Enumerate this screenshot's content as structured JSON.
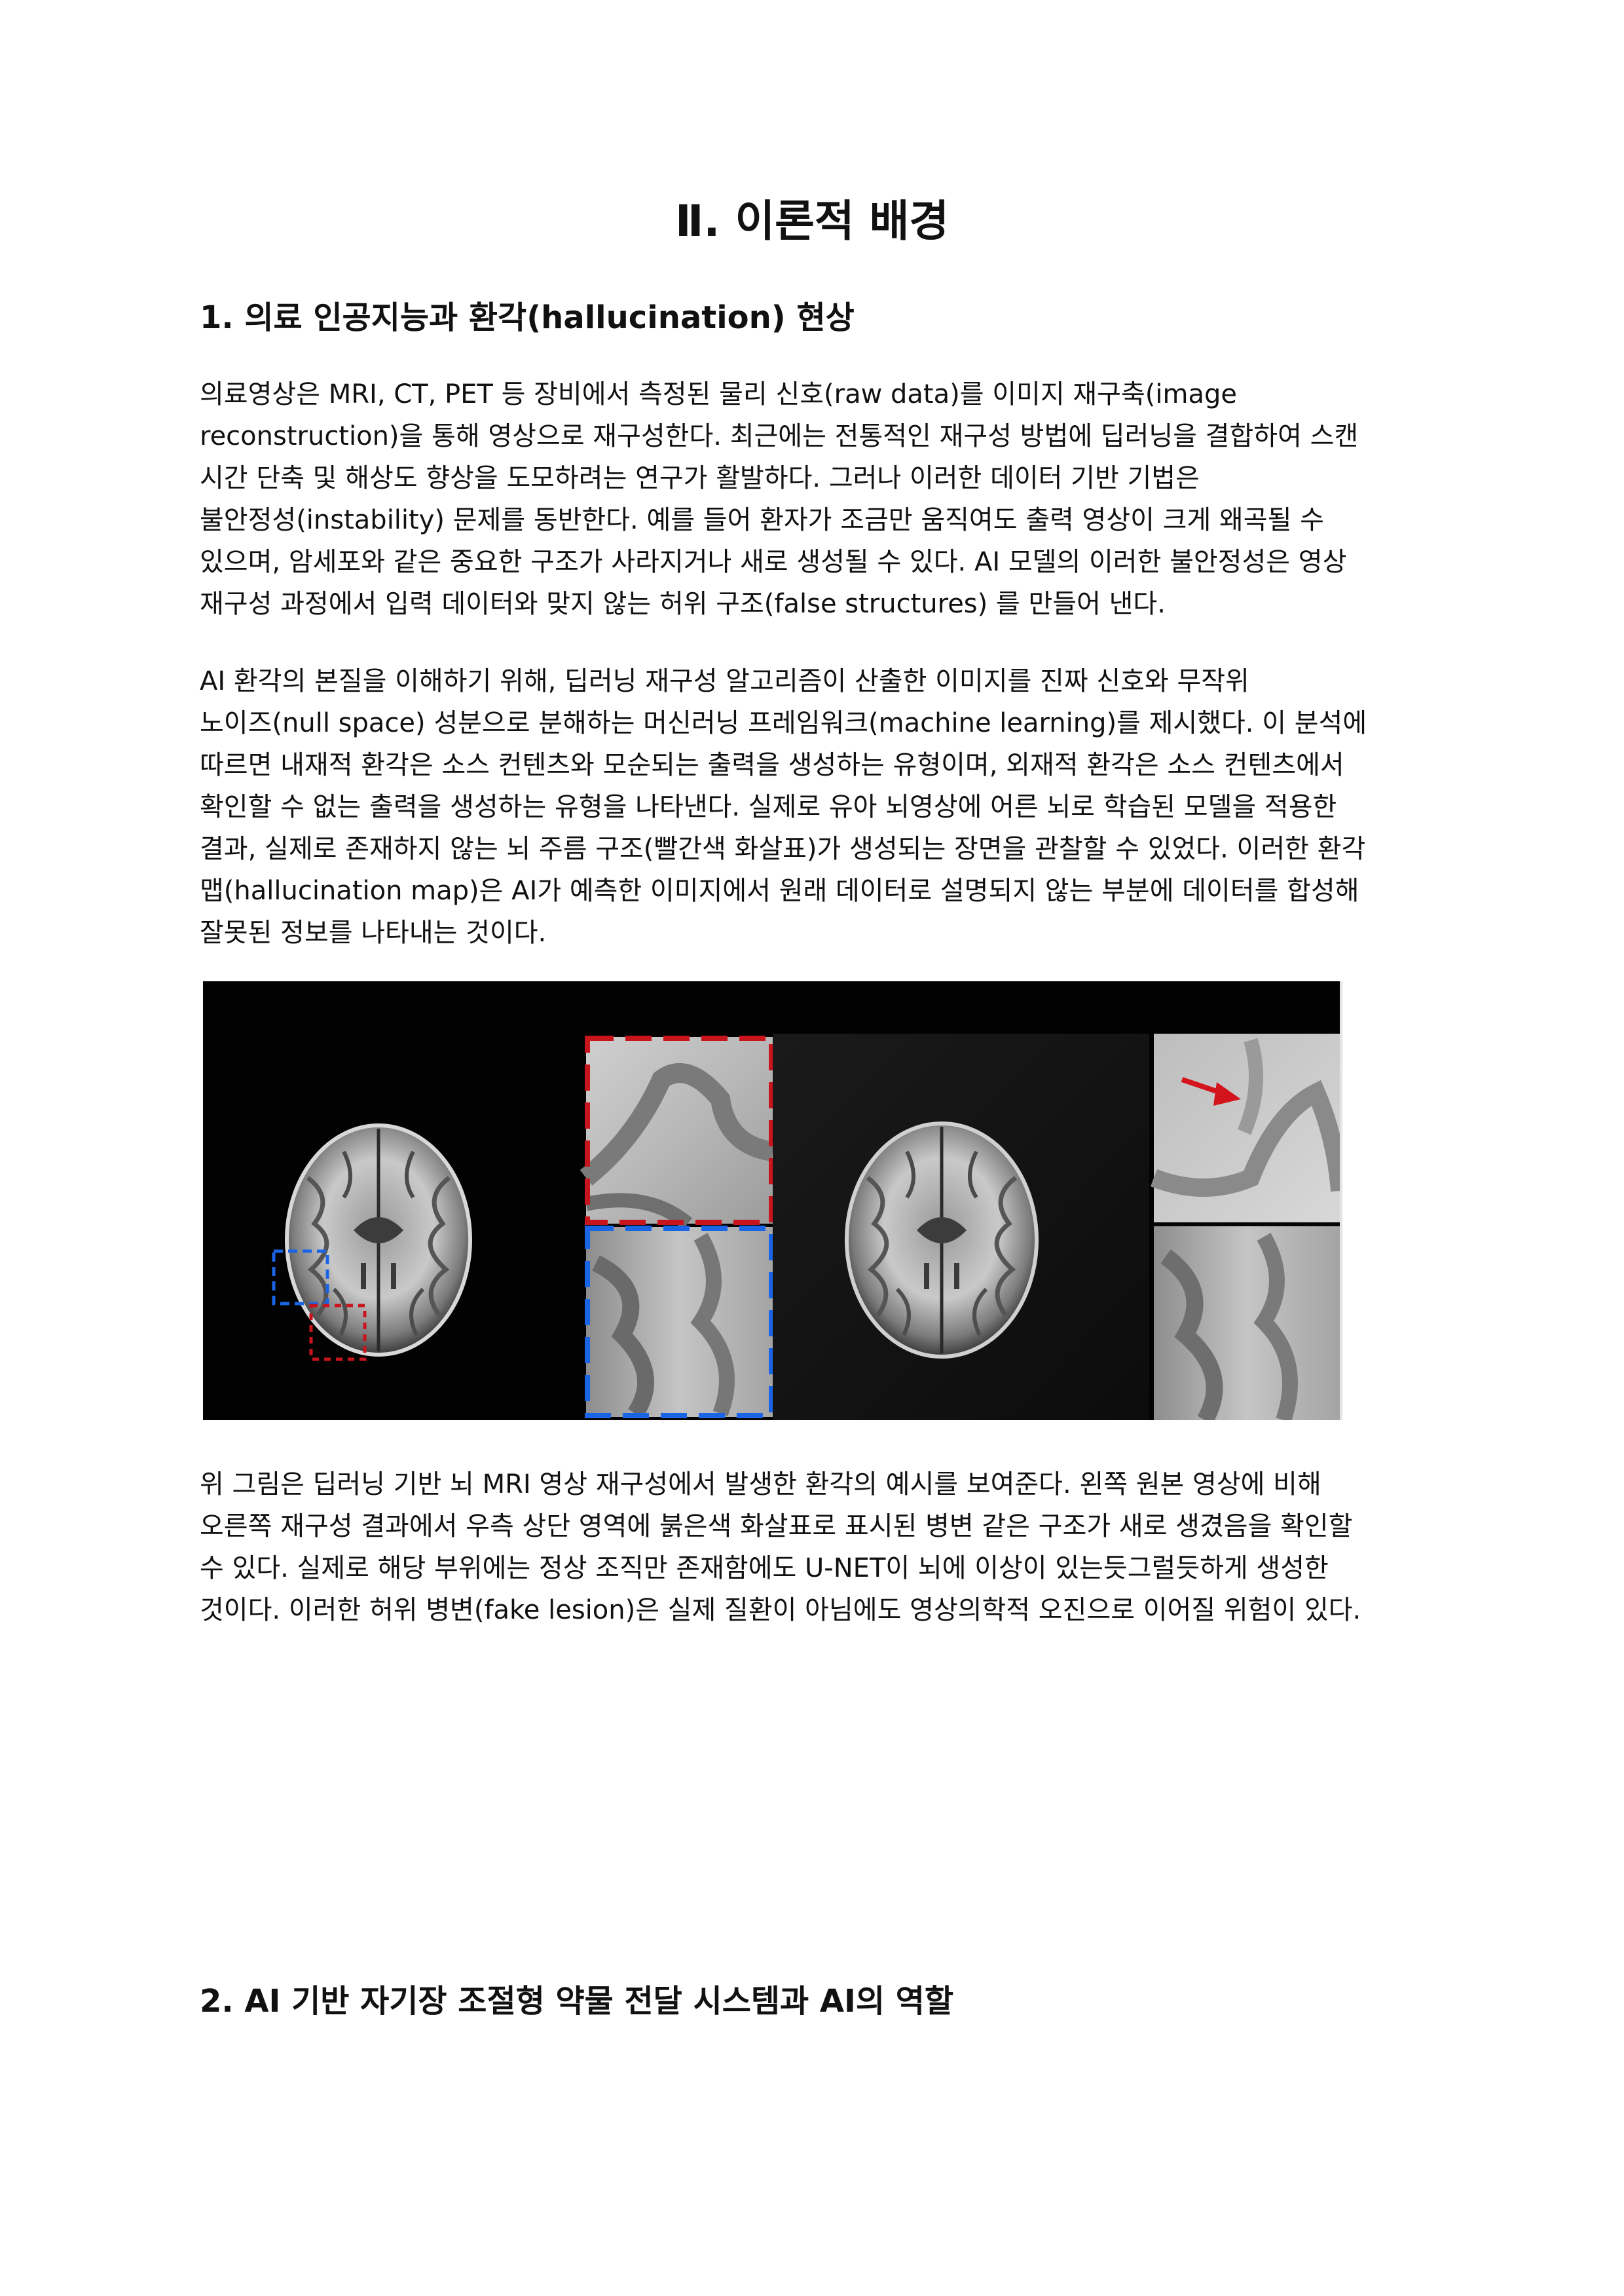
{
  "title": "Ⅱ. 이론적 배경",
  "section1": {
    "heading": "1. 의료 인공지능과 환각(hallucination) 현상",
    "paragraph1": [
      "의료영상은 MRI, CT, PET 등 장비에서 측정된 물리 신호(raw data)를 이미지 재구축(image",
      "reconstruction)을 통해 영상으로 재구성한다. 최근에는 전통적인 재구성 방법에 딥러닝을 결합하여 스캔",
      "시간 단축 및 해상도 향상을 도모하려는 연구가 활발하다. 그러나 이러한 데이터 기반 기법은",
      "불안정성(instability) 문제를 동반한다. 예를 들어 환자가 조금만 움직여도 출력 영상이 크게 왜곡될 수",
      "있으며, 암세포와 같은 중요한 구조가 사라지거나 새로 생성될 수 있다. AI 모델의 이러한 불안정성은 영상",
      "재구성 과정에서 입력 데이터와 맞지 않는 허위 구조(false structures) 를 만들어 낸다."
    ],
    "paragraph2": [
      "AI 환각의 본질을 이해하기 위해, 딥러닝 재구성 알고리즘이 산출한 이미지를 진짜 신호와 무작위",
      "노이즈(null space) 성분으로 분해하는 머신러닝 프레임워크(machine learning)를 제시했다. 이 분석에",
      "따르면 내재적 환각은 소스 컨텐츠와 모순되는 출력을 생성하는 유형이며, 외재적 환각은 소스 컨텐츠에서",
      "확인할 수 없는 출력을 생성하는 유형을 나타낸다. 실제로 유아 뇌영상에 어른 뇌로 학습된 모델을 적용한",
      "결과, 실제로 존재하지 않는 뇌 주름 구조(빨간색 화살표)가 생성되는 장면을 관찰할 수 있었다. 이러한 환각",
      "맵(hallucination map)은 AI가 예측한 이미지에서 원래 데이터로 설명되지 않는 부분에 데이터를 합성해",
      "잘못된 정보를 나타내는 것이다."
    ],
    "paragraph3": [
      "위 그림은 딥러닝 기반 뇌 MRI 영상 재구성에서 발생한 환각의 예시를 보여준다. 왼쪽 원본 영상에 비해",
      "오른쪽 재구성 결과에서 우측 상단 영역에 붉은색 화살표로 표시된 병변 같은 구조가 새로 생겼음을 확인할",
      "수 있다. 실제로 해당 부위에는 정상 조직만 존재함에도 U-NET이 뇌에 이상이 있는듯그럴듯하게 생성한",
      "것이다. 이러한 허위 병변(fake lesion)은 실제 질환이 아님에도 영상의학적 오진으로 이어질 위험이 있다."
    ]
  },
  "section2": {
    "heading": "2. AI 기반 자기장 조절형 약물 전달 시스템과 AI의 역할"
  },
  "figure": {
    "box_colors": {
      "red": "#c8141c",
      "blue": "#1a64e6"
    },
    "arrow_color": "#d4141c"
  }
}
